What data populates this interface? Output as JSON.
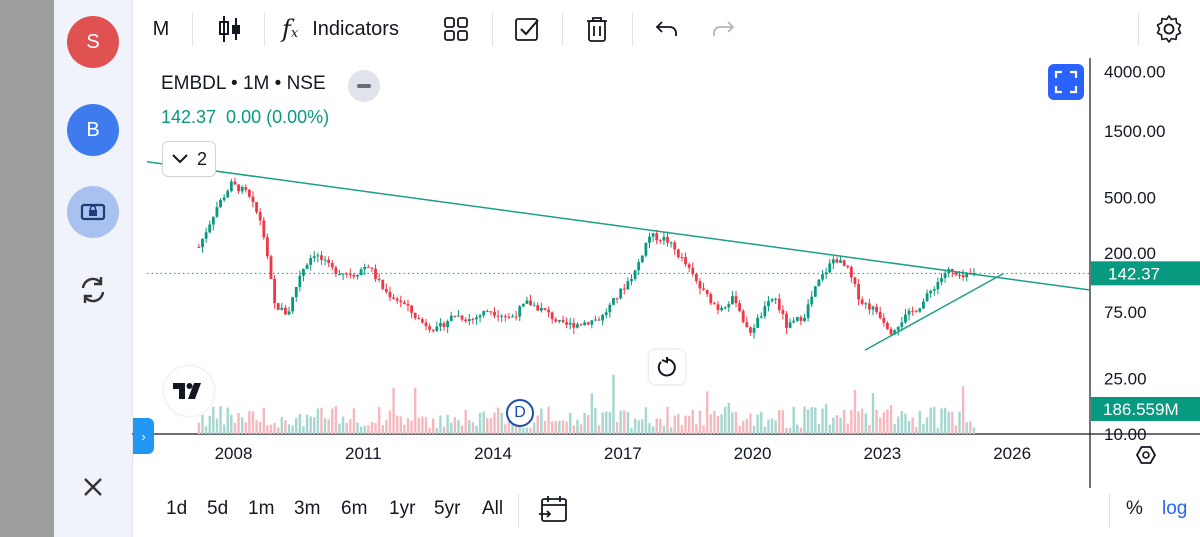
{
  "sidebar": {
    "avatar_s": "S",
    "avatar_b": "B"
  },
  "toolbar": {
    "interval": "M",
    "indicators_label": "Indicators"
  },
  "legend": {
    "symbol": "EMBDL • 1M • NSE",
    "values": "142.37  0.00 (0.00%)",
    "collapse_count": "2"
  },
  "price_axis": {
    "ticks": [
      "4000.00",
      "1500.00",
      "500.00",
      "200.00",
      "75.00",
      "25.00",
      "10.00"
    ],
    "current_price": "142.37",
    "volume_label": "186.559M"
  },
  "time_axis": {
    "ticks": [
      "2008",
      "2011",
      "2014",
      "2017",
      "2020",
      "2023",
      "2026"
    ]
  },
  "range_buttons": [
    "1d",
    "5d",
    "1m",
    "3m",
    "6m",
    "1yr",
    "5yr",
    "All"
  ],
  "scale_buttons": {
    "percent": "%",
    "log": "log"
  },
  "dividend_marker": "D",
  "colors": {
    "up": "#089981",
    "down": "#f23645",
    "volume_up": "#a5d6cf",
    "volume_down": "#f5b8bd",
    "trendline": "#1e9e87",
    "accent": "#2962ff",
    "avatar_s": "#e05252",
    "avatar_b": "#3d7bef"
  },
  "chart_data": {
    "type": "candlestick",
    "symbol": "EMBDL",
    "interval": "1M",
    "scale": "log",
    "last_price": 142.37,
    "last_volume_millions": 186.559,
    "x_ticks": [
      2008,
      2011,
      2014,
      2017,
      2020,
      2023,
      2026
    ],
    "y_ticks": [
      4000,
      1500,
      500,
      200,
      75,
      25,
      10
    ],
    "ylim": [
      10,
      5000
    ],
    "xlim": [
      2006.0,
      2027.8
    ],
    "price_path": [
      {
        "t": 2007.2,
        "p": 220
      },
      {
        "t": 2007.6,
        "p": 420
      },
      {
        "t": 2007.95,
        "p": 620
      },
      {
        "t": 2008.3,
        "p": 540
      },
      {
        "t": 2008.65,
        "p": 330
      },
      {
        "t": 2008.95,
        "p": 85
      },
      {
        "t": 2009.25,
        "p": 72
      },
      {
        "t": 2009.55,
        "p": 145
      },
      {
        "t": 2009.85,
        "p": 200
      },
      {
        "t": 2010.3,
        "p": 150
      },
      {
        "t": 2010.8,
        "p": 140
      },
      {
        "t": 2011.1,
        "p": 165
      },
      {
        "t": 2011.5,
        "p": 105
      },
      {
        "t": 2011.9,
        "p": 88
      },
      {
        "t": 2012.3,
        "p": 65
      },
      {
        "t": 2012.7,
        "p": 56
      },
      {
        "t": 2013.1,
        "p": 72
      },
      {
        "t": 2013.5,
        "p": 66
      },
      {
        "t": 2013.9,
        "p": 78
      },
      {
        "t": 2014.4,
        "p": 68
      },
      {
        "t": 2014.8,
        "p": 88
      },
      {
        "t": 2015.2,
        "p": 76
      },
      {
        "t": 2015.6,
        "p": 60
      },
      {
        "t": 2016.0,
        "p": 62
      },
      {
        "t": 2016.5,
        "p": 68
      },
      {
        "t": 2016.9,
        "p": 100
      },
      {
        "t": 2017.3,
        "p": 150
      },
      {
        "t": 2017.6,
        "p": 265
      },
      {
        "t": 2018.0,
        "p": 250
      },
      {
        "t": 2018.4,
        "p": 175
      },
      {
        "t": 2018.8,
        "p": 110
      },
      {
        "t": 2019.2,
        "p": 80
      },
      {
        "t": 2019.6,
        "p": 95
      },
      {
        "t": 2019.9,
        "p": 52
      },
      {
        "t": 2020.2,
        "p": 72
      },
      {
        "t": 2020.5,
        "p": 98
      },
      {
        "t": 2020.8,
        "p": 58
      },
      {
        "t": 2021.2,
        "p": 72
      },
      {
        "t": 2021.5,
        "p": 120
      },
      {
        "t": 2021.9,
        "p": 185
      },
      {
        "t": 2022.2,
        "p": 150
      },
      {
        "t": 2022.5,
        "p": 90
      },
      {
        "t": 2022.9,
        "p": 75
      },
      {
        "t": 2023.2,
        "p": 55
      },
      {
        "t": 2023.5,
        "p": 68
      },
      {
        "t": 2023.9,
        "p": 85
      },
      {
        "t": 2024.2,
        "p": 115
      },
      {
        "t": 2024.5,
        "p": 150
      },
      {
        "t": 2024.8,
        "p": 130
      },
      {
        "t": 2025.15,
        "p": 142.37
      }
    ],
    "trendlines": [
      {
        "name": "upper",
        "from": {
          "t": 2006.0,
          "p": 900
        },
        "to": {
          "t": 2027.8,
          "p": 108
        }
      },
      {
        "name": "lower",
        "from": {
          "t": 2022.6,
          "p": 40
        },
        "to": {
          "t": 2025.8,
          "p": 142
        }
      }
    ]
  }
}
